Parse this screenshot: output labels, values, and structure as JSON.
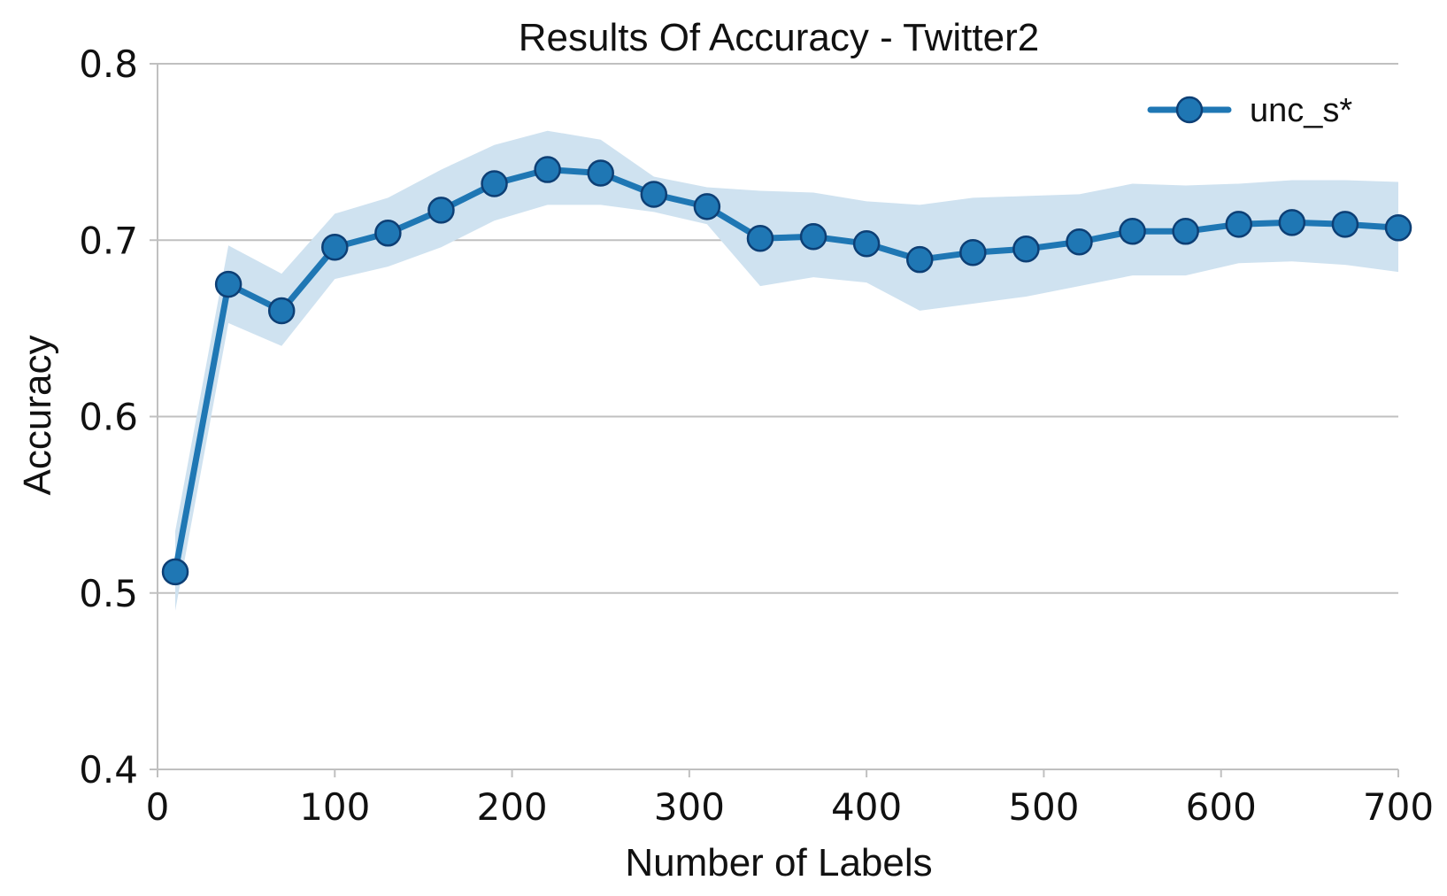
{
  "chart_data": {
    "type": "line",
    "title": "Results Of Accuracy - Twitter2",
    "xlabel": "Number of Labels",
    "ylabel": "Accuracy",
    "xlim": [
      0,
      700
    ],
    "ylim": [
      0.4,
      0.8
    ],
    "xticks": [
      0,
      100,
      200,
      300,
      400,
      500,
      600,
      700
    ],
    "xtick_labels": [
      "0",
      "100",
      "200",
      "300",
      "400",
      "500",
      "600",
      "700"
    ],
    "yticks": [
      0.4,
      0.5,
      0.6,
      0.7,
      0.8
    ],
    "ytick_labels": [
      "0.4",
      "0.5",
      "0.6",
      "0.7",
      "0.8"
    ],
    "grid": "horizontal",
    "legend_position": "top-right",
    "colors": {
      "line": "#1f77b4",
      "marker_edge": "#0d3f75",
      "band": "#cfe2f0",
      "grid": "#c0c0c0"
    },
    "series": [
      {
        "name": "unc_s*",
        "x": [
          10,
          40,
          70,
          100,
          130,
          160,
          190,
          220,
          250,
          280,
          310,
          340,
          370,
          400,
          430,
          460,
          490,
          520,
          550,
          580,
          610,
          640,
          670,
          700
        ],
        "y": [
          0.512,
          0.675,
          0.66,
          0.696,
          0.704,
          0.717,
          0.732,
          0.74,
          0.738,
          0.726,
          0.719,
          0.701,
          0.702,
          0.698,
          0.689,
          0.693,
          0.695,
          0.699,
          0.705,
          0.705,
          0.709,
          0.71,
          0.709,
          0.707
        ],
        "lower": [
          0.49,
          0.653,
          0.64,
          0.678,
          0.685,
          0.696,
          0.711,
          0.72,
          0.72,
          0.716,
          0.709,
          0.674,
          0.679,
          0.676,
          0.66,
          0.664,
          0.668,
          0.674,
          0.68,
          0.68,
          0.687,
          0.688,
          0.686,
          0.682
        ],
        "upper": [
          0.535,
          0.697,
          0.681,
          0.715,
          0.724,
          0.74,
          0.754,
          0.762,
          0.757,
          0.736,
          0.73,
          0.728,
          0.727,
          0.722,
          0.72,
          0.724,
          0.725,
          0.726,
          0.732,
          0.731,
          0.732,
          0.734,
          0.734,
          0.733
        ]
      }
    ]
  }
}
